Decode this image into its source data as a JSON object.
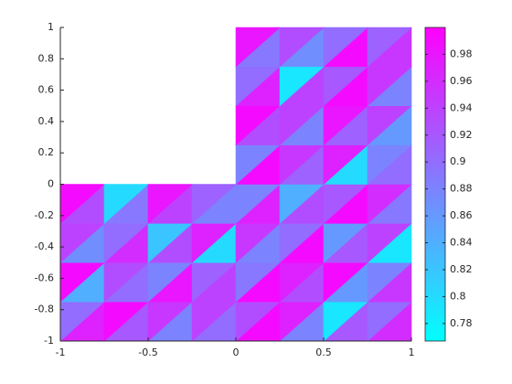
{
  "chart_data": {
    "type": "trisurf",
    "xlim": [
      -1,
      1
    ],
    "ylim": [
      -1,
      1
    ],
    "xticks": [
      -1,
      -0.5,
      0,
      0.5,
      1
    ],
    "yticks": [
      -1,
      -0.8,
      -0.6,
      -0.4,
      -0.2,
      0,
      0.2,
      0.4,
      0.6,
      0.8,
      1
    ],
    "clim": [
      0.767,
      1.0
    ],
    "cticks": [
      0.78,
      0.8,
      0.82,
      0.84,
      0.86,
      0.88,
      0.9,
      0.92,
      0.94,
      0.96,
      0.98
    ],
    "colormap": [
      "#00ffff",
      "#ff00ff"
    ],
    "triangles": [
      [
        -1,
        -1,
        -0.75,
        -1,
        -0.75,
        -0.75
      ],
      [
        -1,
        -1,
        -0.75,
        -0.75,
        -1,
        -0.75
      ],
      [
        -0.75,
        -1,
        -0.5,
        -1,
        -0.5,
        -0.75
      ],
      [
        -0.75,
        -1,
        -0.5,
        -0.75,
        -0.75,
        -0.75
      ],
      [
        -0.5,
        -1,
        -0.25,
        -1,
        -0.25,
        -0.75
      ],
      [
        -0.5,
        -1,
        -0.25,
        -0.75,
        -0.5,
        -0.75
      ],
      [
        -0.25,
        -1,
        0,
        -1,
        0,
        -0.75
      ],
      [
        -0.25,
        -1,
        0,
        -0.75,
        -0.25,
        -0.75
      ],
      [
        0,
        -1,
        0.25,
        -1,
        0.25,
        -0.75
      ],
      [
        0,
        -1,
        0.25,
        -0.75,
        0,
        -0.75
      ],
      [
        0.25,
        -1,
        0.5,
        -1,
        0.5,
        -0.75
      ],
      [
        0.25,
        -1,
        0.5,
        -0.75,
        0.25,
        -0.75
      ],
      [
        0.5,
        -1,
        0.75,
        -1,
        0.75,
        -0.75
      ],
      [
        0.5,
        -1,
        0.75,
        -0.75,
        0.5,
        -0.75
      ],
      [
        0.75,
        -1,
        1,
        -1,
        1,
        -0.75
      ],
      [
        0.75,
        -1,
        1,
        -0.75,
        0.75,
        -0.75
      ],
      [
        -1,
        -0.75,
        -0.75,
        -0.75,
        -0.75,
        -0.5
      ],
      [
        -1,
        -0.75,
        -0.75,
        -0.5,
        -1,
        -0.5
      ],
      [
        -0.75,
        -0.75,
        -0.5,
        -0.75,
        -0.5,
        -0.5
      ],
      [
        -0.75,
        -0.75,
        -0.5,
        -0.5,
        -0.75,
        -0.5
      ],
      [
        -0.5,
        -0.75,
        -0.25,
        -0.75,
        -0.25,
        -0.5
      ],
      [
        -0.5,
        -0.75,
        -0.25,
        -0.5,
        -0.5,
        -0.5
      ],
      [
        -0.25,
        -0.75,
        0,
        -0.75,
        0,
        -0.5
      ],
      [
        -0.25,
        -0.75,
        0,
        -0.5,
        -0.25,
        -0.5
      ],
      [
        0,
        -0.75,
        0.25,
        -0.75,
        0.25,
        -0.5
      ],
      [
        0,
        -0.75,
        0.25,
        -0.5,
        0,
        -0.5
      ],
      [
        0.25,
        -0.75,
        0.5,
        -0.75,
        0.5,
        -0.5
      ],
      [
        0.25,
        -0.75,
        0.5,
        -0.5,
        0.25,
        -0.5
      ],
      [
        0.5,
        -0.75,
        0.75,
        -0.75,
        0.75,
        -0.5
      ],
      [
        0.5,
        -0.75,
        0.75,
        -0.5,
        0.5,
        -0.5
      ],
      [
        0.75,
        -0.75,
        1,
        -0.75,
        1,
        -0.5
      ],
      [
        0.75,
        -0.75,
        1,
        -0.5,
        0.75,
        -0.5
      ],
      [
        -1,
        -0.5,
        -0.75,
        -0.5,
        -0.75,
        -0.25
      ],
      [
        -1,
        -0.5,
        -0.75,
        -0.25,
        -1,
        -0.25
      ],
      [
        -0.75,
        -0.5,
        -0.5,
        -0.5,
        -0.5,
        -0.25
      ],
      [
        -0.75,
        -0.5,
        -0.5,
        -0.25,
        -0.75,
        -0.25
      ],
      [
        -0.5,
        -0.5,
        -0.25,
        -0.5,
        -0.25,
        -0.25
      ],
      [
        -0.5,
        -0.5,
        -0.25,
        -0.25,
        -0.5,
        -0.25
      ],
      [
        -0.25,
        -0.5,
        0,
        -0.5,
        0,
        -0.25
      ],
      [
        -0.25,
        -0.5,
        0,
        -0.25,
        -0.25,
        -0.25
      ],
      [
        0,
        -0.5,
        0.25,
        -0.5,
        0.25,
        -0.25
      ],
      [
        0,
        -0.5,
        0.25,
        -0.25,
        0,
        -0.25
      ],
      [
        0.25,
        -0.5,
        0.5,
        -0.5,
        0.5,
        -0.25
      ],
      [
        0.25,
        -0.5,
        0.5,
        -0.25,
        0.25,
        -0.25
      ],
      [
        0.5,
        -0.5,
        0.75,
        -0.5,
        0.75,
        -0.25
      ],
      [
        0.5,
        -0.5,
        0.75,
        -0.25,
        0.5,
        -0.25
      ],
      [
        0.75,
        -0.5,
        1,
        -0.5,
        1,
        -0.25
      ],
      [
        0.75,
        -0.5,
        1,
        -0.25,
        0.75,
        -0.25
      ],
      [
        -1,
        -0.25,
        -0.75,
        -0.25,
        -0.75,
        0
      ],
      [
        -1,
        -0.25,
        -0.75,
        0,
        -1,
        0
      ],
      [
        -0.75,
        -0.25,
        -0.5,
        -0.25,
        -0.5,
        0
      ],
      [
        -0.75,
        -0.25,
        -0.5,
        0,
        -0.75,
        0
      ],
      [
        -0.5,
        -0.25,
        -0.25,
        -0.25,
        -0.25,
        0
      ],
      [
        -0.5,
        -0.25,
        -0.25,
        0,
        -0.5,
        0
      ],
      [
        -0.25,
        -0.25,
        0,
        -0.25,
        0,
        0
      ],
      [
        -0.25,
        -0.25,
        0,
        0,
        -0.25,
        0
      ],
      [
        0,
        -0.25,
        0.25,
        -0.25,
        0.25,
        0
      ],
      [
        0,
        -0.25,
        0.25,
        0,
        0,
        0
      ],
      [
        0.25,
        -0.25,
        0.5,
        -0.25,
        0.5,
        0
      ],
      [
        0.25,
        -0.25,
        0.5,
        0,
        0.25,
        0
      ],
      [
        0.5,
        -0.25,
        0.75,
        -0.25,
        0.75,
        0
      ],
      [
        0.5,
        -0.25,
        0.75,
        0,
        0.5,
        0
      ],
      [
        0.75,
        -0.25,
        1,
        -0.25,
        1,
        0
      ],
      [
        0.75,
        -0.25,
        1,
        0,
        0.75,
        0
      ],
      [
        0,
        0,
        0.25,
        0,
        0.25,
        0.25
      ],
      [
        0,
        0,
        0.25,
        0.25,
        0,
        0.25
      ],
      [
        0.25,
        0,
        0.5,
        0,
        0.5,
        0.25
      ],
      [
        0.25,
        0,
        0.5,
        0.25,
        0.25,
        0.25
      ],
      [
        0.5,
        0,
        0.75,
        0,
        0.75,
        0.25
      ],
      [
        0.5,
        0,
        0.75,
        0.25,
        0.5,
        0.25
      ],
      [
        0.75,
        0,
        1,
        0,
        1,
        0.25
      ],
      [
        0.75,
        0,
        1,
        0.25,
        0.75,
        0.25
      ],
      [
        0,
        0.25,
        0.25,
        0.25,
        0.25,
        0.5
      ],
      [
        0,
        0.25,
        0.25,
        0.5,
        0,
        0.5
      ],
      [
        0.25,
        0.25,
        0.5,
        0.25,
        0.5,
        0.5
      ],
      [
        0.25,
        0.25,
        0.5,
        0.5,
        0.25,
        0.5
      ],
      [
        0.5,
        0.25,
        0.75,
        0.25,
        0.75,
        0.5
      ],
      [
        0.5,
        0.25,
        0.75,
        0.5,
        0.5,
        0.5
      ],
      [
        0.75,
        0.25,
        1,
        0.25,
        1,
        0.5
      ],
      [
        0.75,
        0.25,
        1,
        0.5,
        0.75,
        0.5
      ],
      [
        0,
        0.5,
        0.25,
        0.5,
        0.25,
        0.75
      ],
      [
        0,
        0.5,
        0.25,
        0.75,
        0,
        0.75
      ],
      [
        0.25,
        0.5,
        0.5,
        0.5,
        0.5,
        0.75
      ],
      [
        0.25,
        0.5,
        0.5,
        0.75,
        0.25,
        0.75
      ],
      [
        0.5,
        0.5,
        0.75,
        0.5,
        0.75,
        0.75
      ],
      [
        0.5,
        0.5,
        0.75,
        0.75,
        0.5,
        0.75
      ],
      [
        0.75,
        0.5,
        1,
        0.5,
        1,
        0.75
      ],
      [
        0.75,
        0.5,
        1,
        0.75,
        0.75,
        0.75
      ],
      [
        0,
        0.75,
        0.25,
        0.75,
        0.25,
        1
      ],
      [
        0,
        0.75,
        0.25,
        1,
        0,
        1
      ],
      [
        0.25,
        0.75,
        0.5,
        0.75,
        0.5,
        1
      ],
      [
        0.25,
        0.75,
        0.5,
        1,
        0.25,
        1
      ],
      [
        0.5,
        0.75,
        0.75,
        0.75,
        0.75,
        1
      ],
      [
        0.5,
        0.75,
        0.75,
        1,
        0.5,
        1
      ],
      [
        0.75,
        0.75,
        1,
        0.75,
        1,
        1
      ],
      [
        0.75,
        0.75,
        1,
        1,
        0.75,
        1
      ]
    ],
    "values": [
      0.97,
      0.9,
      0.92,
      0.99,
      0.88,
      0.95,
      0.9,
      0.94,
      0.99,
      0.93,
      0.88,
      0.97,
      0.92,
      0.79,
      0.96,
      0.9,
      0.84,
      0.99,
      0.9,
      0.93,
      0.98,
      0.88,
      0.94,
      0.91,
      0.99,
      0.89,
      0.93,
      0.97,
      0.86,
      0.99,
      0.95,
      0.88,
      0.87,
      0.94,
      0.96,
      0.9,
      0.93,
      0.82,
      0.8,
      0.97,
      0.88,
      0.95,
      0.99,
      0.9,
      0.92,
      0.86,
      0.79,
      0.94,
      0.93,
      0.99,
      0.89,
      0.8,
      0.94,
      0.98,
      0.88,
      0.91,
      0.97,
      0.88,
      0.93,
      0.84,
      0.99,
      0.92,
      0.89,
      0.96,
      0.99,
      0.88,
      0.91,
      0.95,
      0.8,
      0.97,
      0.9,
      0.88,
      0.93,
      0.99,
      0.88,
      0.94,
      0.91,
      0.98,
      0.86,
      0.94,
      0.97,
      0.9,
      0.94,
      0.79,
      0.99,
      0.92,
      0.88,
      0.95,
      0.89,
      0.98,
      0.87,
      0.93,
      0.99,
      0.9,
      0.95,
      0.91
    ]
  }
}
